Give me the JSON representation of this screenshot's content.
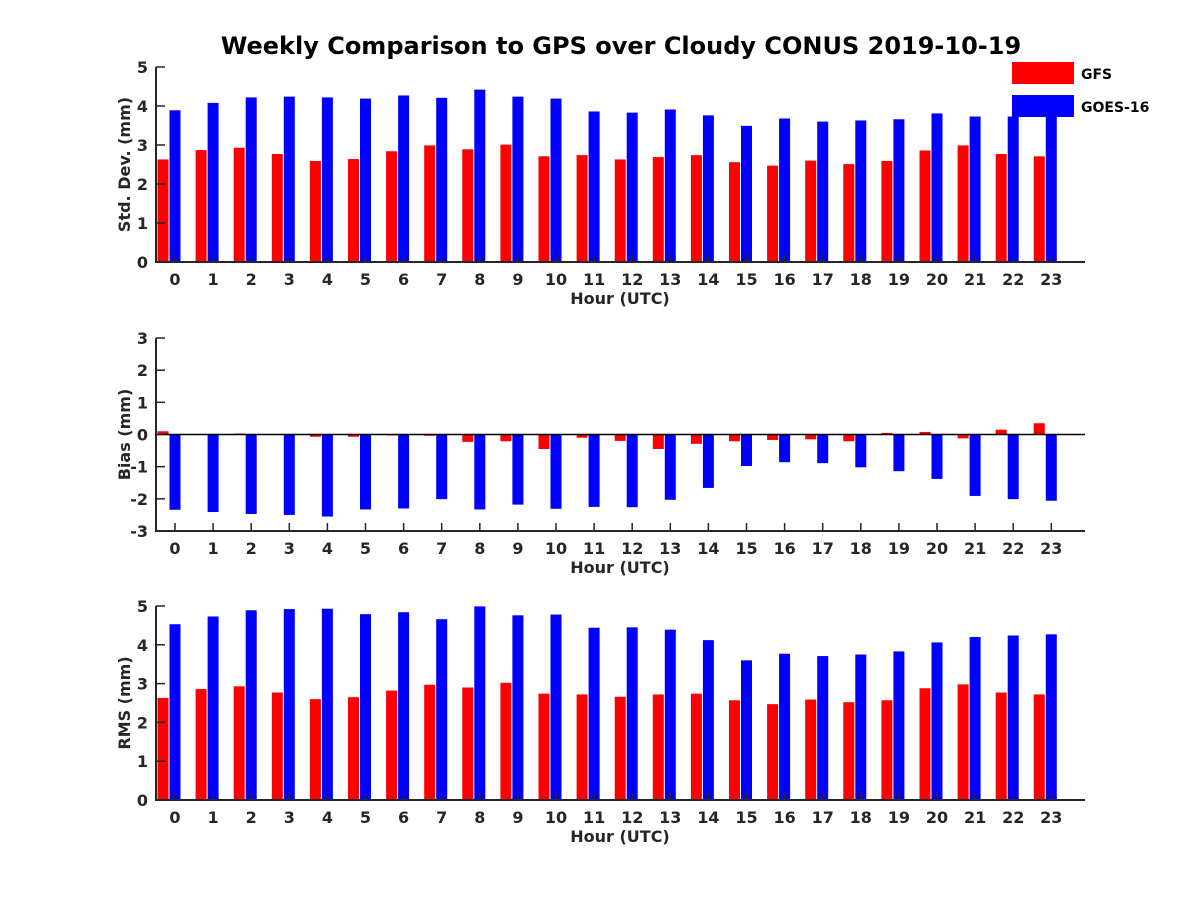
{
  "title": "Weekly Comparison to GPS over Cloudy CONUS 2019-10-19",
  "legend": [
    {
      "name": "GFS",
      "color": "#ff0000"
    },
    {
      "name": "GOES-16",
      "color": "#0000ff"
    }
  ],
  "chart_data": [
    {
      "type": "bar",
      "xlabel": "Hour (UTC)",
      "ylabel": "Std. Dev. (mm)",
      "ylim": [
        0,
        5
      ],
      "yticks": [
        0,
        1,
        2,
        3,
        4,
        5
      ],
      "categories": [
        "0",
        "1",
        "2",
        "3",
        "4",
        "5",
        "6",
        "7",
        "8",
        "9",
        "10",
        "11",
        "12",
        "13",
        "14",
        "15",
        "16",
        "17",
        "18",
        "19",
        "20",
        "21",
        "22",
        "23"
      ],
      "series": [
        {
          "name": "GFS",
          "color": "#ff0000",
          "values": [
            2.63,
            2.87,
            2.93,
            2.77,
            2.59,
            2.64,
            2.84,
            2.99,
            2.89,
            3.01,
            2.71,
            2.74,
            2.63,
            2.69,
            2.74,
            2.56,
            2.47,
            2.6,
            2.51,
            2.59,
            2.86,
            2.99,
            2.77,
            2.71
          ]
        },
        {
          "name": "GOES-16",
          "color": "#0000ff",
          "values": [
            3.89,
            4.08,
            4.22,
            4.24,
            4.22,
            4.19,
            4.27,
            4.21,
            4.42,
            4.24,
            4.19,
            3.86,
            3.83,
            3.91,
            3.76,
            3.49,
            3.68,
            3.6,
            3.63,
            3.66,
            3.81,
            3.73,
            3.73,
            3.9
          ]
        }
      ],
      "legend_position": "top-right",
      "grid": false
    },
    {
      "type": "bar",
      "xlabel": "Hour (UTC)",
      "ylabel": "Bias (mm)",
      "ylim": [
        -3,
        3
      ],
      "yticks": [
        -3,
        -2,
        -1,
        0,
        1,
        2,
        3
      ],
      "categories": [
        "0",
        "1",
        "2",
        "3",
        "4",
        "5",
        "6",
        "7",
        "8",
        "9",
        "10",
        "11",
        "12",
        "13",
        "14",
        "15",
        "16",
        "17",
        "18",
        "19",
        "20",
        "21",
        "22",
        "23"
      ],
      "series": [
        {
          "name": "GFS",
          "color": "#ff0000",
          "values": [
            0.1,
            0.0,
            0.03,
            0.0,
            -0.07,
            -0.07,
            -0.03,
            -0.04,
            -0.23,
            -0.21,
            -0.45,
            -0.1,
            -0.2,
            -0.45,
            -0.29,
            -0.21,
            -0.17,
            -0.15,
            -0.21,
            0.05,
            0.08,
            -0.12,
            0.15,
            0.35
          ]
        },
        {
          "name": "GOES-16",
          "color": "#0000ff",
          "values": [
            -2.34,
            -2.41,
            -2.47,
            -2.5,
            -2.55,
            -2.33,
            -2.3,
            -2.01,
            -2.33,
            -2.18,
            -2.31,
            -2.25,
            -2.26,
            -2.03,
            -1.66,
            -0.98,
            -0.86,
            -0.89,
            -1.02,
            -1.14,
            -1.38,
            -1.91,
            -2.01,
            -2.06
          ]
        }
      ],
      "grid": false
    },
    {
      "type": "bar",
      "xlabel": "Hour (UTC)",
      "ylabel": "RMS (mm)",
      "ylim": [
        0,
        5
      ],
      "yticks": [
        0,
        1,
        2,
        3,
        4,
        5
      ],
      "categories": [
        "0",
        "1",
        "2",
        "3",
        "4",
        "5",
        "6",
        "7",
        "8",
        "9",
        "10",
        "11",
        "12",
        "13",
        "14",
        "15",
        "16",
        "17",
        "18",
        "19",
        "20",
        "21",
        "22",
        "23"
      ],
      "series": [
        {
          "name": "GFS",
          "color": "#ff0000",
          "values": [
            2.63,
            2.86,
            2.93,
            2.77,
            2.6,
            2.65,
            2.82,
            2.97,
            2.9,
            3.02,
            2.74,
            2.72,
            2.66,
            2.72,
            2.74,
            2.57,
            2.47,
            2.59,
            2.52,
            2.57,
            2.88,
            2.98,
            2.77,
            2.72
          ]
        },
        {
          "name": "GOES-16",
          "color": "#0000ff",
          "values": [
            4.53,
            4.73,
            4.89,
            4.92,
            4.93,
            4.79,
            4.84,
            4.66,
            4.99,
            4.76,
            4.78,
            4.44,
            4.45,
            4.39,
            4.12,
            3.6,
            3.77,
            3.71,
            3.75,
            3.83,
            4.06,
            4.2,
            4.24,
            4.27
          ]
        }
      ],
      "grid": false
    }
  ]
}
